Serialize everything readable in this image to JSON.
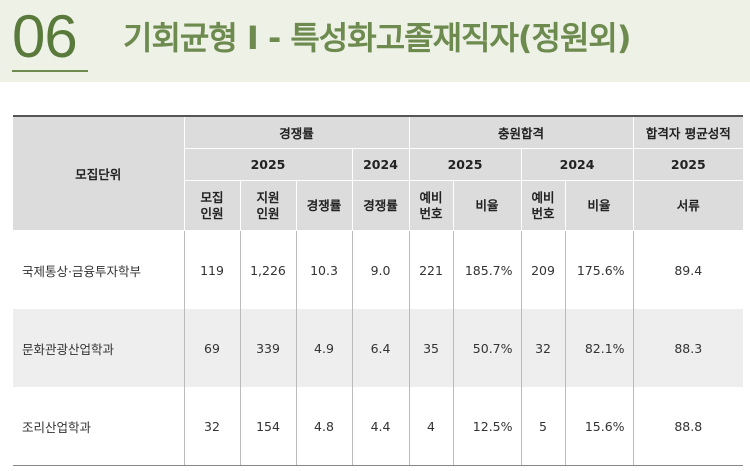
{
  "header": {
    "number": "06",
    "title": "기회균형 Ⅰ - 특성화고졸재직자(정원외)"
  },
  "table": {
    "unit_header": "모집단위",
    "group_competition": "경쟁률",
    "group_additional": "충원합격",
    "group_avg": "합격자 평균성적",
    "year_2025": "2025",
    "year_2024": "2024",
    "sub": {
      "recruit": "모집 인원",
      "applicants": "지원 인원",
      "ratio": "경쟁률",
      "waitlist": "예비 번호",
      "rate": "비율",
      "document": "서류"
    },
    "rows": [
      {
        "dept": "국제통상·금융투자학부",
        "recruit": "119",
        "applicants": "1,226",
        "ratio_2025": "10.3",
        "ratio_2024": "9.0",
        "wait_2025": "221",
        "rate_2025": "185.7%",
        "wait_2024": "209",
        "rate_2024": "175.6%",
        "doc_2025": "89.4"
      },
      {
        "dept": "문화관광산업학과",
        "recruit": "69",
        "applicants": "339",
        "ratio_2025": "4.9",
        "ratio_2024": "6.4",
        "wait_2025": "35",
        "rate_2025": "50.7%",
        "wait_2024": "32",
        "rate_2024": "82.1%",
        "doc_2025": "88.3"
      },
      {
        "dept": "조리산업학과",
        "recruit": "32",
        "applicants": "154",
        "ratio_2025": "4.8",
        "ratio_2024": "4.4",
        "wait_2025": "4",
        "rate_2025": "12.5%",
        "wait_2024": "5",
        "rate_2024": "15.6%",
        "doc_2025": "88.8"
      }
    ]
  }
}
